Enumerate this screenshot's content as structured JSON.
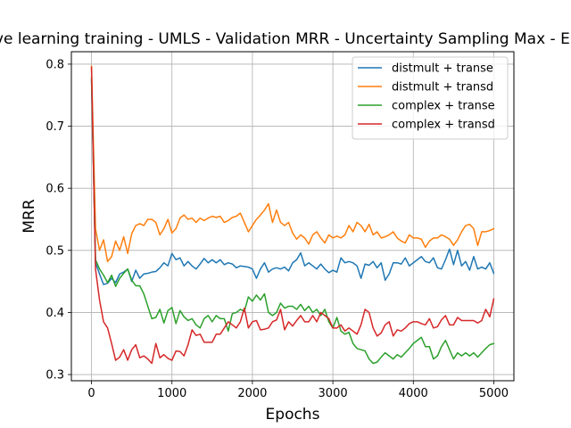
{
  "chart_data": {
    "type": "line",
    "title": "Active learning training - UMLS - Validation MRR - Uncertainty Sampling Max - Entropy",
    "xlabel": "Epochs",
    "ylabel": "MRR",
    "xlim": [
      -250,
      5250
    ],
    "ylim": [
      0.29,
      0.82
    ],
    "xticks": [
      0,
      1000,
      2000,
      3000,
      4000,
      5000
    ],
    "yticks": [
      0.3,
      0.4,
      0.5,
      0.6,
      0.7,
      0.8
    ],
    "grid": true,
    "legend_position": "top-right",
    "x": [
      0,
      50,
      100,
      150,
      200,
      250,
      300,
      350,
      400,
      450,
      500,
      550,
      600,
      650,
      700,
      750,
      800,
      850,
      900,
      950,
      1000,
      1050,
      1100,
      1150,
      1200,
      1250,
      1300,
      1350,
      1400,
      1450,
      1500,
      1550,
      1600,
      1650,
      1700,
      1750,
      1800,
      1850,
      1900,
      1950,
      2000,
      2050,
      2100,
      2150,
      2200,
      2250,
      2300,
      2350,
      2400,
      2450,
      2500,
      2550,
      2600,
      2650,
      2700,
      2750,
      2800,
      2850,
      2900,
      2950,
      3000,
      3050,
      3100,
      3150,
      3200,
      3250,
      3300,
      3350,
      3400,
      3450,
      3500,
      3550,
      3600,
      3650,
      3700,
      3750,
      3800,
      3850,
      3900,
      3950,
      4000,
      4050,
      4100,
      4150,
      4200,
      4250,
      4300,
      4350,
      4400,
      4450,
      4500,
      4550,
      4600,
      4650,
      4700,
      4750,
      4800,
      4850,
      4900,
      4950,
      5000
    ],
    "series": [
      {
        "name": "distmult + transe",
        "color": "#1f77b4",
        "values": [
          0.775,
          0.48,
          0.462,
          0.445,
          0.447,
          0.455,
          0.448,
          0.462,
          0.465,
          0.47,
          0.45,
          0.468,
          0.455,
          0.462,
          0.463,
          0.465,
          0.466,
          0.472,
          0.48,
          0.475,
          0.495,
          0.485,
          0.488,
          0.475,
          0.482,
          0.475,
          0.47,
          0.478,
          0.487,
          0.48,
          0.485,
          0.48,
          0.485,
          0.477,
          0.48,
          0.478,
          0.472,
          0.475,
          0.474,
          0.473,
          0.47,
          0.455,
          0.47,
          0.48,
          0.465,
          0.47,
          0.472,
          0.47,
          0.473,
          0.467,
          0.48,
          0.485,
          0.496,
          0.475,
          0.48,
          0.475,
          0.47,
          0.478,
          0.47,
          0.464,
          0.468,
          0.465,
          0.488,
          0.48,
          0.482,
          0.48,
          0.475,
          0.455,
          0.478,
          0.476,
          0.482,
          0.472,
          0.48,
          0.452,
          0.462,
          0.48,
          0.48,
          0.478,
          0.488,
          0.475,
          0.48,
          0.485,
          0.49,
          0.482,
          0.48,
          0.488,
          0.472,
          0.47,
          0.485,
          0.502,
          0.477,
          0.5,
          0.475,
          0.482,
          0.468,
          0.49,
          0.47,
          0.473,
          0.47,
          0.48,
          0.463
        ]
      },
      {
        "name": "distmult + transd",
        "color": "#ff7f0e",
        "values": [
          0.797,
          0.535,
          0.5,
          0.517,
          0.482,
          0.49,
          0.515,
          0.5,
          0.522,
          0.495,
          0.527,
          0.54,
          0.543,
          0.54,
          0.55,
          0.55,
          0.545,
          0.525,
          0.535,
          0.55,
          0.528,
          0.535,
          0.552,
          0.557,
          0.55,
          0.552,
          0.545,
          0.552,
          0.548,
          0.552,
          0.555,
          0.553,
          0.555,
          0.545,
          0.548,
          0.553,
          0.555,
          0.56,
          0.545,
          0.53,
          0.54,
          0.55,
          0.557,
          0.565,
          0.575,
          0.545,
          0.565,
          0.545,
          0.54,
          0.545,
          0.528,
          0.518,
          0.525,
          0.52,
          0.51,
          0.525,
          0.53,
          0.52,
          0.512,
          0.525,
          0.52,
          0.523,
          0.52,
          0.525,
          0.54,
          0.53,
          0.545,
          0.54,
          0.53,
          0.542,
          0.525,
          0.53,
          0.52,
          0.522,
          0.525,
          0.53,
          0.52,
          0.515,
          0.512,
          0.525,
          0.52,
          0.52,
          0.518,
          0.505,
          0.515,
          0.52,
          0.52,
          0.525,
          0.522,
          0.518,
          0.508,
          0.517,
          0.53,
          0.54,
          0.542,
          0.535,
          0.508,
          0.53,
          0.53,
          0.532,
          0.535
        ]
      },
      {
        "name": "complex + transe",
        "color": "#2ca02c",
        "values": [
          0.78,
          0.485,
          0.47,
          0.46,
          0.448,
          0.46,
          0.442,
          0.455,
          0.463,
          0.47,
          0.452,
          0.443,
          0.443,
          0.43,
          0.41,
          0.39,
          0.392,
          0.405,
          0.383,
          0.403,
          0.408,
          0.382,
          0.403,
          0.393,
          0.387,
          0.39,
          0.38,
          0.375,
          0.39,
          0.395,
          0.385,
          0.395,
          0.39,
          0.39,
          0.37,
          0.398,
          0.4,
          0.405,
          0.402,
          0.425,
          0.418,
          0.428,
          0.42,
          0.43,
          0.4,
          0.395,
          0.4,
          0.415,
          0.407,
          0.41,
          0.41,
          0.405,
          0.413,
          0.403,
          0.41,
          0.4,
          0.405,
          0.395,
          0.405,
          0.385,
          0.375,
          0.392,
          0.37,
          0.365,
          0.368,
          0.35,
          0.342,
          0.34,
          0.338,
          0.325,
          0.318,
          0.32,
          0.328,
          0.335,
          0.33,
          0.325,
          0.332,
          0.328,
          0.335,
          0.342,
          0.35,
          0.355,
          0.36,
          0.345,
          0.345,
          0.325,
          0.33,
          0.345,
          0.355,
          0.34,
          0.325,
          0.335,
          0.33,
          0.335,
          0.33,
          0.335,
          0.328,
          0.335,
          0.342,
          0.348,
          0.35
        ]
      },
      {
        "name": "complex + transd",
        "color": "#d62728",
        "values": [
          0.795,
          0.47,
          0.42,
          0.385,
          0.375,
          0.35,
          0.323,
          0.328,
          0.34,
          0.323,
          0.34,
          0.348,
          0.327,
          0.33,
          0.325,
          0.318,
          0.35,
          0.327,
          0.332,
          0.326,
          0.323,
          0.338,
          0.337,
          0.33,
          0.348,
          0.372,
          0.363,
          0.365,
          0.352,
          0.352,
          0.352,
          0.365,
          0.365,
          0.375,
          0.385,
          0.38,
          0.375,
          0.385,
          0.407,
          0.375,
          0.385,
          0.387,
          0.372,
          0.373,
          0.375,
          0.385,
          0.388,
          0.405,
          0.372,
          0.385,
          0.378,
          0.387,
          0.395,
          0.385,
          0.385,
          0.395,
          0.385,
          0.4,
          0.395,
          0.39,
          0.375,
          0.375,
          0.38,
          0.37,
          0.375,
          0.37,
          0.365,
          0.38,
          0.405,
          0.4,
          0.375,
          0.362,
          0.367,
          0.38,
          0.385,
          0.362,
          0.372,
          0.37,
          0.375,
          0.382,
          0.385,
          0.385,
          0.382,
          0.38,
          0.39,
          0.375,
          0.377,
          0.388,
          0.395,
          0.38,
          0.38,
          0.392,
          0.387,
          0.387,
          0.387,
          0.387,
          0.383,
          0.387,
          0.405,
          0.393,
          0.422
        ]
      }
    ]
  }
}
